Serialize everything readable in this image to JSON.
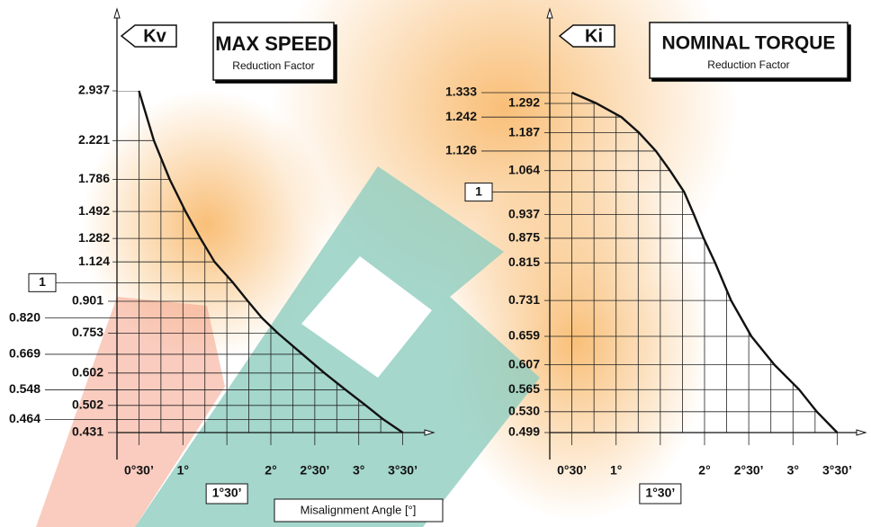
{
  "x_axis_label": "Misalignment Angle [°]",
  "chart_data": [
    {
      "type": "line",
      "ylabel": "Kv",
      "title": "MAX SPEED",
      "subtitle": "Reduction Factor",
      "log_y": true,
      "color": "#111111",
      "xlim": [
        0.25,
        3.75
      ],
      "xticks": [
        {
          "value": 0.5,
          "label": "0°30’"
        },
        {
          "value": 1,
          "label": "1°"
        },
        {
          "value": 1.5,
          "label": "1°30’"
        },
        {
          "value": 2,
          "label": "2°"
        },
        {
          "value": 2.5,
          "label": "2°30’"
        },
        {
          "value": 3,
          "label": "3°"
        },
        {
          "value": 3.5,
          "label": "3°30’"
        }
      ],
      "ylim": [
        0.431,
        2.937
      ],
      "yticks": [
        2.937,
        2.221,
        1.786,
        1.492,
        1.282,
        1.124,
        1,
        0.901,
        {
          "value": 0.82,
          "label": "0.820"
        },
        0.753,
        0.669,
        0.602,
        0.548,
        0.502,
        0.464,
        0.431
      ],
      "x": [
        0.5,
        0.67,
        0.85,
        1.03,
        1.2,
        1.36,
        1.57,
        1.74,
        1.9,
        2.08,
        2.36,
        2.61,
        2.85,
        3.08,
        3.28,
        3.5
      ],
      "values": [
        2.937,
        2.221,
        1.786,
        1.492,
        1.282,
        1.124,
        1,
        0.901,
        0.82,
        0.753,
        0.669,
        0.602,
        0.548,
        0.502,
        0.464,
        0.431
      ]
    },
    {
      "type": "line",
      "ylabel": "Ki",
      "title": "NOMINAL TORQUE",
      "subtitle": "Reduction Factor",
      "log_y": true,
      "color": "#111111",
      "xlim": [
        0.25,
        3.75
      ],
      "xticks": [
        {
          "value": 0.5,
          "label": "0°30’"
        },
        {
          "value": 1,
          "label": "1°"
        },
        {
          "value": 1.5,
          "label": "1°30’"
        },
        {
          "value": 2,
          "label": "2°"
        },
        {
          "value": 2.5,
          "label": "2°30’"
        },
        {
          "value": 3,
          "label": "3°"
        },
        {
          "value": 3.5,
          "label": "3°30’"
        }
      ],
      "ylim": [
        0.499,
        1.333
      ],
      "yticks": [
        1.333,
        1.292,
        1.242,
        1.187,
        1.126,
        1.064,
        1,
        0.937,
        0.875,
        0.815,
        0.731,
        0.659,
        0.607,
        0.565,
        {
          "value": 0.53,
          "label": "0.530"
        },
        0.499
      ],
      "x": [
        0.5,
        0.78,
        1.06,
        1.26,
        1.45,
        1.61,
        1.77,
        1.88,
        1.99,
        2.12,
        2.3,
        2.53,
        2.79,
        3.07,
        3.27,
        3.5
      ],
      "values": [
        1.333,
        1.292,
        1.242,
        1.187,
        1.126,
        1.064,
        1,
        0.937,
        0.875,
        0.815,
        0.731,
        0.659,
        0.607,
        0.565,
        0.53,
        0.499
      ]
    }
  ]
}
